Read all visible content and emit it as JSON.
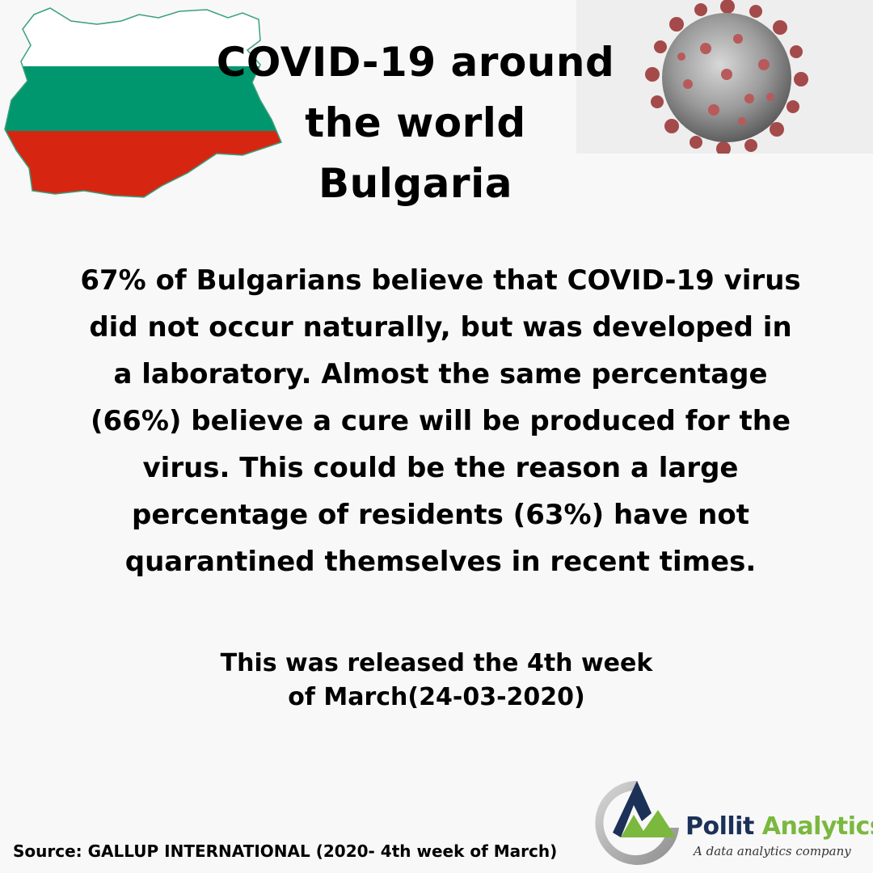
{
  "header": {
    "title_line1": "COVID-19 around",
    "title_line2": "the world",
    "title_line3": "Bulgaria"
  },
  "images": {
    "flag_map_icon": "bulgaria-flag-map",
    "virus_icon": "coronavirus-particle",
    "flag_colors": [
      "#ffffff",
      "#00966e",
      "#d62612"
    ]
  },
  "main": {
    "body_text": "67% of Bulgarians believe that COVID-19 virus did not occur naturally, but was developed in a laboratory. Almost the same percentage (66%) believe a cure will be produced for the virus. This could be the reason a large percentage of residents (63%) have not quarantined themselves in recent times.",
    "release_line1": "This was released the 4th week",
    "release_line2": "of March(24-03-2020)"
  },
  "footer": {
    "source": "Source: GALLUP INTERNATIONAL (2020- 4th week of March)",
    "logo_word1": "Pollit",
    "logo_word2": "Analytics",
    "logo_tagline": "A data analytics company",
    "brand_colors": [
      "#1b3157",
      "#7ab83e"
    ]
  }
}
